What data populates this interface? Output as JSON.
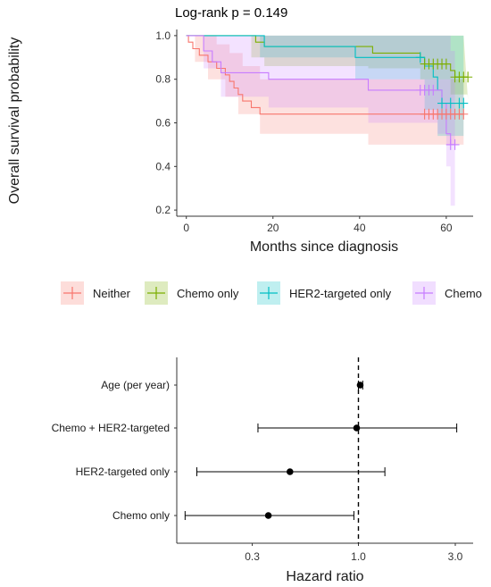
{
  "chart_data": [
    {
      "type": "line",
      "subtype": "kaplan-meier",
      "title": "Log-rank p = 0.149",
      "xlabel": "Months since diagnosis",
      "ylabel": "Overall survival probability",
      "xlim": [
        -2,
        66
      ],
      "ylim": [
        0.18,
        1.02
      ],
      "x_ticks": [
        "0",
        "20",
        "40",
        "60"
      ],
      "y_ticks": [
        "0.2",
        "0.4",
        "0.6",
        "0.8",
        "1.0"
      ],
      "grid": false,
      "legend_position": "bottom",
      "series": [
        {
          "name": "Neither",
          "color": "#F8766D",
          "fill": "#F8766D",
          "steps": [
            [
              0,
              1.0
            ],
            [
              0.5,
              0.97
            ],
            [
              1.5,
              0.94
            ],
            [
              3,
              0.91
            ],
            [
              5,
              0.88
            ],
            [
              7,
              0.85
            ],
            [
              9,
              0.82
            ],
            [
              10,
              0.79
            ],
            [
              11,
              0.76
            ],
            [
              12,
              0.73
            ],
            [
              13,
              0.7
            ],
            [
              15,
              0.67
            ],
            [
              17,
              0.64
            ],
            [
              64,
              0.64
            ]
          ],
          "upper": [
            [
              0,
              1.0
            ],
            [
              5,
              1.0
            ],
            [
              7,
              0.96
            ],
            [
              10,
              0.92
            ],
            [
              13,
              0.86
            ],
            [
              17,
              0.8
            ],
            [
              64,
              0.8
            ]
          ],
          "lower": [
            [
              0,
              1.0
            ],
            [
              2,
              0.88
            ],
            [
              5,
              0.8
            ],
            [
              9,
              0.72
            ],
            [
              12,
              0.64
            ],
            [
              17,
              0.55
            ],
            [
              39,
              0.55
            ],
            [
              42,
              0.5
            ],
            [
              64,
              0.5
            ]
          ],
          "censor_x": [
            55,
            56,
            57,
            58,
            59,
            60,
            61,
            62,
            63,
            64
          ]
        },
        {
          "name": "Chemo only",
          "color": "#7CAE00",
          "fill": "#7CAE00",
          "steps": [
            [
              0,
              1.0
            ],
            [
              15,
              1.0
            ],
            [
              16,
              0.97
            ],
            [
              18,
              0.95
            ],
            [
              42,
              0.95
            ],
            [
              43,
              0.92
            ],
            [
              54,
              0.9
            ],
            [
              55,
              0.87
            ],
            [
              60,
              0.87
            ],
            [
              61,
              0.84
            ],
            [
              62,
              0.81
            ],
            [
              65,
              0.81
            ]
          ],
          "upper": [
            [
              0,
              1.0
            ],
            [
              64,
              1.0
            ]
          ],
          "lower": [
            [
              0,
              1.0
            ],
            [
              15,
              0.9
            ],
            [
              18,
              0.86
            ],
            [
              42,
              0.85
            ],
            [
              54,
              0.8
            ],
            [
              61,
              0.73
            ],
            [
              65,
              0.71
            ]
          ],
          "censor_x": [
            55,
            56,
            57,
            58,
            59,
            60,
            62,
            63,
            64,
            65
          ]
        },
        {
          "name": "HER2-targeted only",
          "color": "#00BFC4",
          "fill": "#00BFC4",
          "steps": [
            [
              0,
              1.0
            ],
            [
              17,
              1.0
            ],
            [
              18,
              0.95
            ],
            [
              38,
              0.95
            ],
            [
              39,
              0.9
            ],
            [
              54,
              0.9
            ],
            [
              55,
              0.86
            ],
            [
              57,
              0.81
            ],
            [
              58,
              0.75
            ],
            [
              59,
              0.69
            ],
            [
              64,
              0.69
            ]
          ],
          "upper": [
            [
              0,
              1.0
            ],
            [
              64,
              1.0
            ]
          ],
          "lower": [
            [
              0,
              1.0
            ],
            [
              17,
              0.9
            ],
            [
              39,
              0.8
            ],
            [
              55,
              0.66
            ],
            [
              58,
              0.54
            ],
            [
              64,
              0.52
            ]
          ],
          "censor_x": [
            54,
            59,
            61,
            63,
            64
          ]
        },
        {
          "name": "Chemo",
          "color": "#C77CFF",
          "fill": "#C77CFF",
          "steps": [
            [
              0,
              1.0
            ],
            [
              3,
              1.0
            ],
            [
              4,
              0.93
            ],
            [
              6,
              0.88
            ],
            [
              8,
              0.83
            ],
            [
              18,
              0.83
            ],
            [
              19,
              0.8
            ],
            [
              40,
              0.8
            ],
            [
              42,
              0.75
            ],
            [
              58,
              0.75
            ],
            [
              59,
              0.69
            ],
            [
              60,
              0.55
            ],
            [
              61,
              0.5
            ],
            [
              62,
              0.5
            ]
          ],
          "upper": [
            [
              0,
              1.0
            ],
            [
              60,
              1.0
            ],
            [
              61,
              0.93
            ],
            [
              62,
              0.93
            ]
          ],
          "lower": [
            [
              0,
              1.0
            ],
            [
              4,
              0.85
            ],
            [
              8,
              0.72
            ],
            [
              19,
              0.67
            ],
            [
              42,
              0.6
            ],
            [
              58,
              0.55
            ],
            [
              60,
              0.4
            ],
            [
              61,
              0.22
            ],
            [
              62,
              0.22
            ]
          ],
          "censor_x": [
            54,
            55,
            56,
            57,
            61,
            62
          ]
        }
      ]
    },
    {
      "type": "forest",
      "xlabel": "Hazard ratio",
      "x_scale": "log",
      "xlim": [
        0.13,
        3.6
      ],
      "x_ticks": [
        {
          "label": "0.3",
          "value": 0.3
        },
        {
          "label": "1.0",
          "value": 1.0
        },
        {
          "label": "3.0",
          "value": 3.0
        }
      ],
      "reference_line": 1.0,
      "rows": [
        {
          "label": "Age (per year)",
          "hr": 1.02,
          "lo": 1.0,
          "hi": 1.05
        },
        {
          "label": "Chemo + HER2-targeted",
          "hr": 0.98,
          "lo": 0.32,
          "hi": 3.05
        },
        {
          "label": "HER2-targeted only",
          "hr": 0.46,
          "lo": 0.16,
          "hi": 1.35
        },
        {
          "label": "Chemo only",
          "hr": 0.36,
          "lo": 0.14,
          "hi": 0.95
        }
      ]
    }
  ]
}
